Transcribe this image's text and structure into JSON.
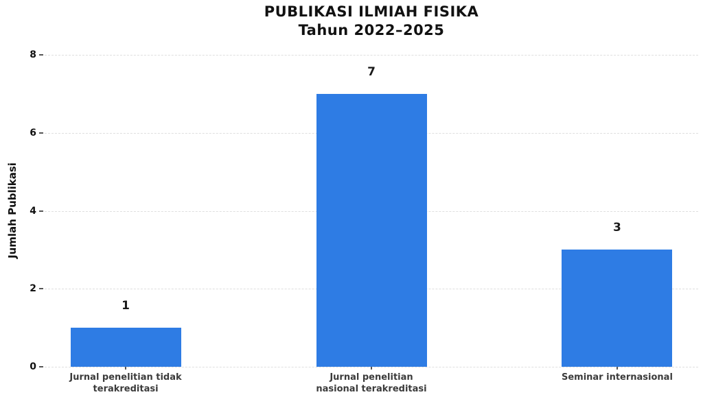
{
  "chart_data": {
    "type": "bar",
    "title": "PUBLIKASI ILMIAH FISIKA",
    "subtitle": "Tahun 2022–2025",
    "ylabel": "Jumlah Publikasi",
    "xlabel": "",
    "categories": [
      "Jurnal penelitian tidak\nterakreditasi",
      "Jurnal penelitian\nnasional terakreditasi",
      "Seminar internasional"
    ],
    "values": [
      1,
      7,
      3
    ],
    "value_labels": [
      "1",
      "7",
      "3"
    ],
    "ylim": [
      0,
      8
    ],
    "yticks": [
      0,
      2,
      4,
      6,
      8
    ],
    "grid": {
      "axis": "y",
      "style": "dashed",
      "color": "#dedede"
    },
    "legend": "none",
    "bar_color": "#2e7ce4"
  }
}
